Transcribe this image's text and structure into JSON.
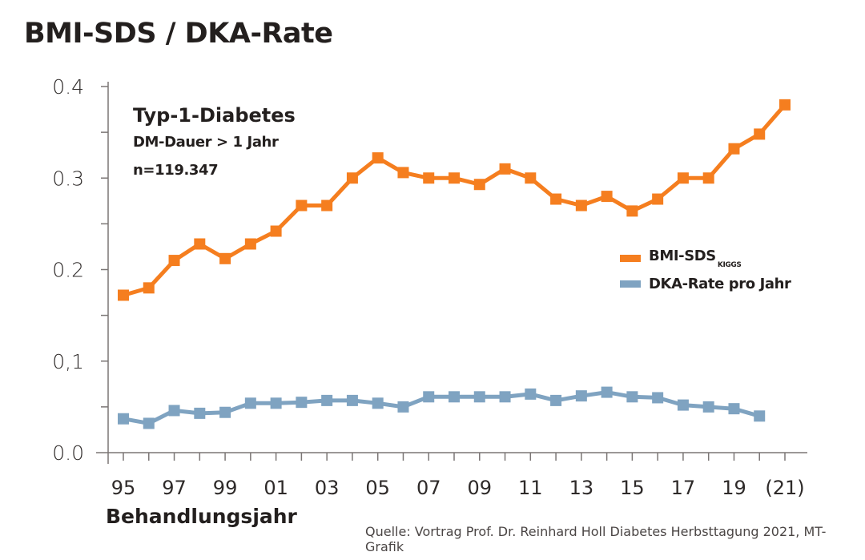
{
  "chart_data": {
    "type": "line",
    "title": "BMI-SDS / DKA-Rate",
    "xlabel": "Behandlungsjahr",
    "ylabel": "",
    "ylim": [
      0,
      0.4
    ],
    "xlim": [
      1995,
      2021
    ],
    "y_ticks": [
      {
        "value": 0.0,
        "label": "0.0"
      },
      {
        "value": 0.05,
        "label": ""
      },
      {
        "value": 0.1,
        "label": "0,1"
      },
      {
        "value": 0.15,
        "label": ""
      },
      {
        "value": 0.2,
        "label": "0.2"
      },
      {
        "value": 0.25,
        "label": ""
      },
      {
        "value": 0.3,
        "label": "0.3"
      },
      {
        "value": 0.35,
        "label": ""
      },
      {
        "value": 0.4,
        "label": "0.4"
      }
    ],
    "x_ticks": [
      {
        "value": 1995,
        "label": "95"
      },
      {
        "value": 1997,
        "label": "97"
      },
      {
        "value": 1999,
        "label": "99"
      },
      {
        "value": 2001,
        "label": "01"
      },
      {
        "value": 2003,
        "label": "03"
      },
      {
        "value": 2005,
        "label": "05"
      },
      {
        "value": 2007,
        "label": "07"
      },
      {
        "value": 2009,
        "label": "09"
      },
      {
        "value": 2011,
        "label": "11"
      },
      {
        "value": 2013,
        "label": "13"
      },
      {
        "value": 2015,
        "label": "15"
      },
      {
        "value": 2017,
        "label": "17"
      },
      {
        "value": 2019,
        "label": "19"
      },
      {
        "value": 2021,
        "label": "(21)"
      }
    ],
    "grid": false,
    "legend_position": "right-middle",
    "series": [
      {
        "name": "BMI-SDS",
        "subscript": "KIGGS",
        "color": "#f57e1f",
        "x": [
          1995,
          1996,
          1997,
          1998,
          1999,
          2000,
          2001,
          2002,
          2003,
          2004,
          2005,
          2006,
          2007,
          2008,
          2009,
          2010,
          2011,
          2012,
          2013,
          2014,
          2015,
          2016,
          2017,
          2018,
          2019,
          2020,
          2021
        ],
        "values": [
          0.172,
          0.18,
          0.21,
          0.228,
          0.212,
          0.228,
          0.242,
          0.27,
          0.27,
          0.3,
          0.322,
          0.306,
          0.3,
          0.3,
          0.293,
          0.31,
          0.3,
          0.277,
          0.27,
          0.28,
          0.264,
          0.277,
          0.3,
          0.3,
          0.332,
          0.348,
          0.38
        ]
      },
      {
        "name": "DKA-Rate pro Jahr",
        "subscript": "",
        "color": "#7fa3c1",
        "x": [
          1995,
          1996,
          1997,
          1998,
          1999,
          2000,
          2001,
          2002,
          2003,
          2004,
          2005,
          2006,
          2007,
          2008,
          2009,
          2010,
          2011,
          2012,
          2013,
          2014,
          2015,
          2016,
          2017,
          2018,
          2019,
          2020
        ],
        "values": [
          0.037,
          0.032,
          0.046,
          0.043,
          0.044,
          0.054,
          0.054,
          0.055,
          0.057,
          0.057,
          0.054,
          0.05,
          0.061,
          0.061,
          0.061,
          0.061,
          0.064,
          0.057,
          0.062,
          0.066,
          0.061,
          0.06,
          0.052,
          0.05,
          0.048,
          0.04
        ]
      }
    ],
    "annotations": [
      {
        "text": "Typ-1-Diabetes"
      },
      {
        "text": "DM-Dauer > 1 Jahr"
      },
      {
        "text": "n=119.347"
      }
    ],
    "source": "Quelle: Vortrag Prof. Dr. Reinhard Holl Diabetes Herbsttagung 2021, MT-Grafik"
  }
}
